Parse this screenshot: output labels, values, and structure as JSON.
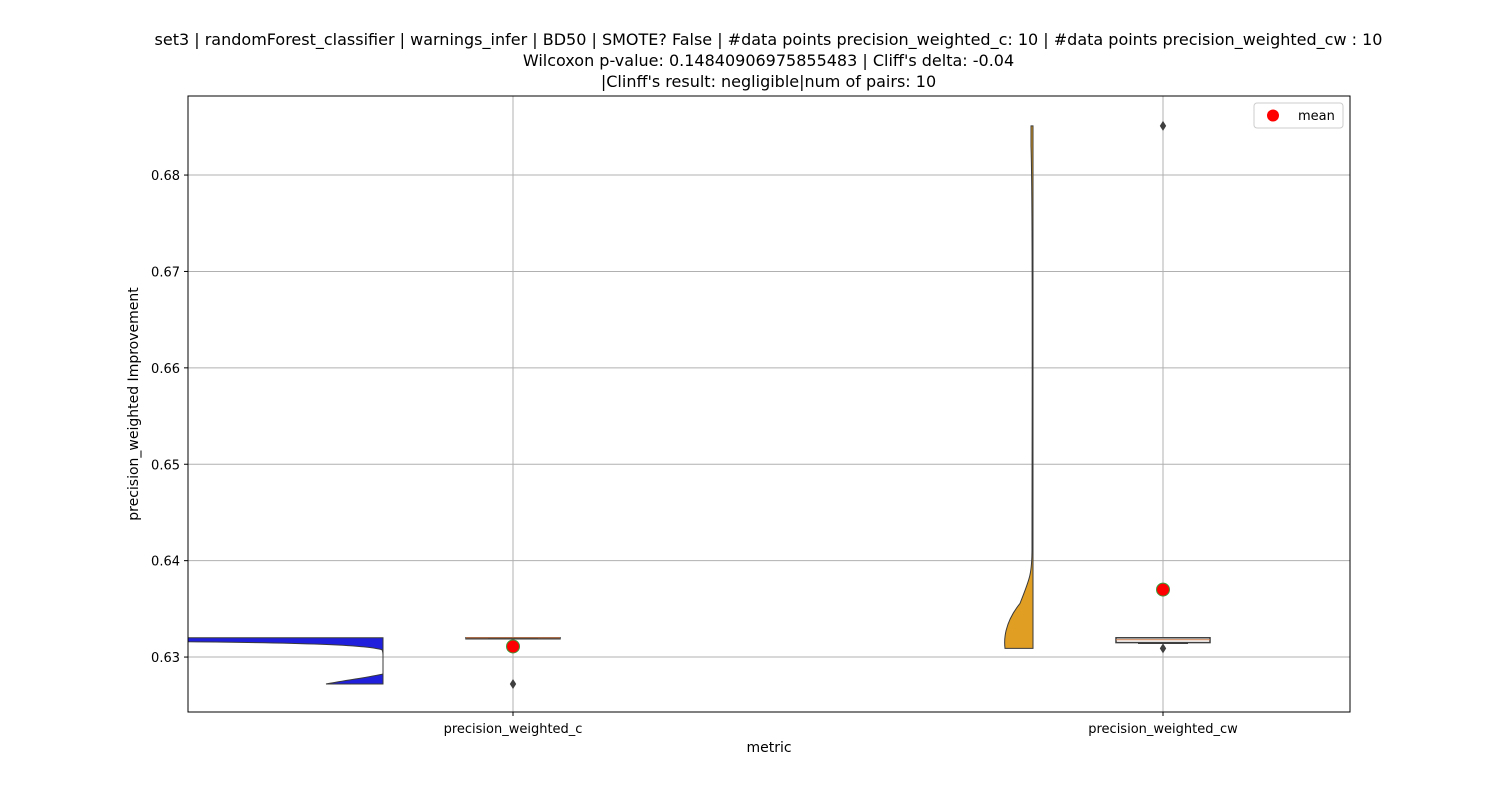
{
  "chart_data": {
    "type": "violin",
    "title_lines": [
      "set3 | randomForest_classifier | warnings_infer | BD50 | SMOTE? False | #data points precision_weighted_c: 10 | #data points precision_weighted_cw : 10",
      "Wilcoxon p-value: 0.14840906975855483 | Cliff's delta: -0.04",
      "|Clinff's result: negligible|num of pairs: 10"
    ],
    "xlabel": "metric",
    "ylabel": "precision_weighted Improvement",
    "categories": [
      "precision_weighted_c",
      "precision_weighted_cw"
    ],
    "ylim": [
      0.6243,
      0.6882
    ],
    "yticks": [
      0.63,
      0.64,
      0.65,
      0.66,
      0.67,
      0.68
    ],
    "ytick_labels": [
      "0.63",
      "0.64",
      "0.65",
      "0.66",
      "0.67",
      "0.68"
    ],
    "grid": true,
    "legend": {
      "position": "top-right",
      "entries": [
        "mean"
      ]
    },
    "colors": {
      "precision_weighted_c": "#1f1fdc",
      "precision_weighted_cw": "#e09e22",
      "mean": "#ff0000",
      "mean_edge": "#3d9a3d"
    },
    "series": [
      {
        "category": "precision_weighted_c",
        "violin_min": 0.6272,
        "violin_max": 0.632,
        "box": {
          "q1": 0.6319,
          "median": 0.632,
          "q3": 0.632,
          "whisker_low": 0.6319,
          "whisker_high": 0.632
        },
        "outliers": [
          0.6272
        ],
        "mean": 0.6311
      },
      {
        "category": "precision_weighted_cw",
        "violin_min": 0.6309,
        "violin_max": 0.6851,
        "box": {
          "q1": 0.6315,
          "median": 0.6318,
          "q3": 0.632,
          "whisker_low": 0.6314,
          "whisker_high": 0.632
        },
        "outliers": [
          0.6309,
          0.6851
        ],
        "mean": 0.637
      }
    ]
  }
}
